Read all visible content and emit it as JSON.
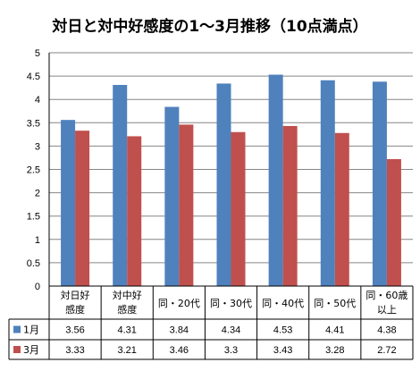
{
  "chart_data": {
    "type": "bar",
    "title": "対日と対中好感度の1～3月推移（10点満点）",
    "categories": [
      [
        "対日好",
        "感度"
      ],
      [
        "対中好",
        "感度"
      ],
      [
        "同・20代"
      ],
      [
        "同・30代"
      ],
      [
        "同・40代"
      ],
      [
        "同・50代"
      ],
      [
        "同・60歳",
        "以上"
      ]
    ],
    "series": [
      {
        "name": "1月",
        "color": "#4F81BD",
        "values": [
          3.56,
          4.31,
          3.84,
          4.34,
          4.53,
          4.41,
          4.38
        ]
      },
      {
        "name": "3月",
        "color": "#C0504D",
        "values": [
          3.33,
          3.21,
          3.46,
          3.3,
          3.43,
          3.28,
          2.72
        ]
      }
    ],
    "value_labels": [
      [
        "3.56",
        "4.31",
        "3.84",
        "4.34",
        "4.53",
        "4.41",
        "4.38"
      ],
      [
        "3.33",
        "3.21",
        "3.46",
        "3.3",
        "3.43",
        "3.28",
        "2.72"
      ]
    ],
    "ylim": [
      0,
      5
    ],
    "yticks": [
      "0",
      "0.5",
      "1",
      "1.5",
      "2",
      "2.5",
      "3",
      "3.5",
      "4",
      "4.5",
      "5"
    ],
    "grid": true,
    "legend": "data-table"
  }
}
